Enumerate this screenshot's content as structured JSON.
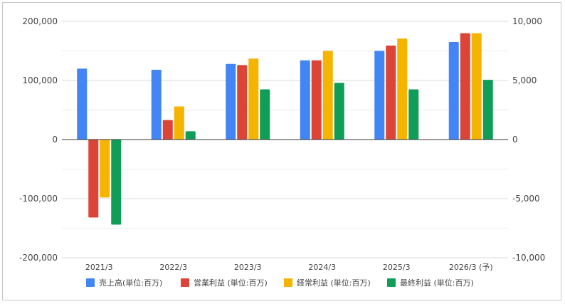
{
  "chart_data": {
    "type": "bar",
    "categories": [
      "2021/3",
      "2022/3",
      "2023/3",
      "2024/3",
      "2025/3",
      "2026/3 (予)"
    ],
    "left_axis": {
      "ylim": [
        -200000,
        200000
      ],
      "ticks": [
        200000,
        100000,
        0,
        -100000,
        -200000
      ],
      "tick_labels": [
        "200,000",
        "100,000",
        "0",
        "-100,000",
        "-200,000"
      ]
    },
    "right_axis": {
      "ylim": [
        -10000,
        10000
      ],
      "ticks": [
        10000,
        5000,
        0,
        -5000,
        -10000
      ],
      "tick_labels": [
        "10,000",
        "5,000",
        "0",
        "-5,000",
        "-10,000"
      ]
    },
    "series": [
      {
        "name": "売上高(単位:百万)",
        "color": "#4285f4",
        "axis": "left",
        "values": [
          120000,
          118000,
          128000,
          134000,
          150000,
          165000
        ]
      },
      {
        "name": "営業利益 (単位:百万)",
        "color": "#db4437",
        "axis": "right",
        "values": [
          -6600,
          1650,
          6300,
          6700,
          7950,
          9000
        ]
      },
      {
        "name": "経常利益 (単位:百万)",
        "color": "#f4b400",
        "axis": "right",
        "values": [
          -4900,
          2800,
          6850,
          7500,
          8550,
          9000
        ]
      },
      {
        "name": "最終利益 (単位:百万)",
        "color": "#0f9d58",
        "axis": "right",
        "values": [
          -7200,
          700,
          4250,
          4800,
          4250,
          5050
        ]
      }
    ],
    "grid": true,
    "legend_position": "bottom"
  }
}
